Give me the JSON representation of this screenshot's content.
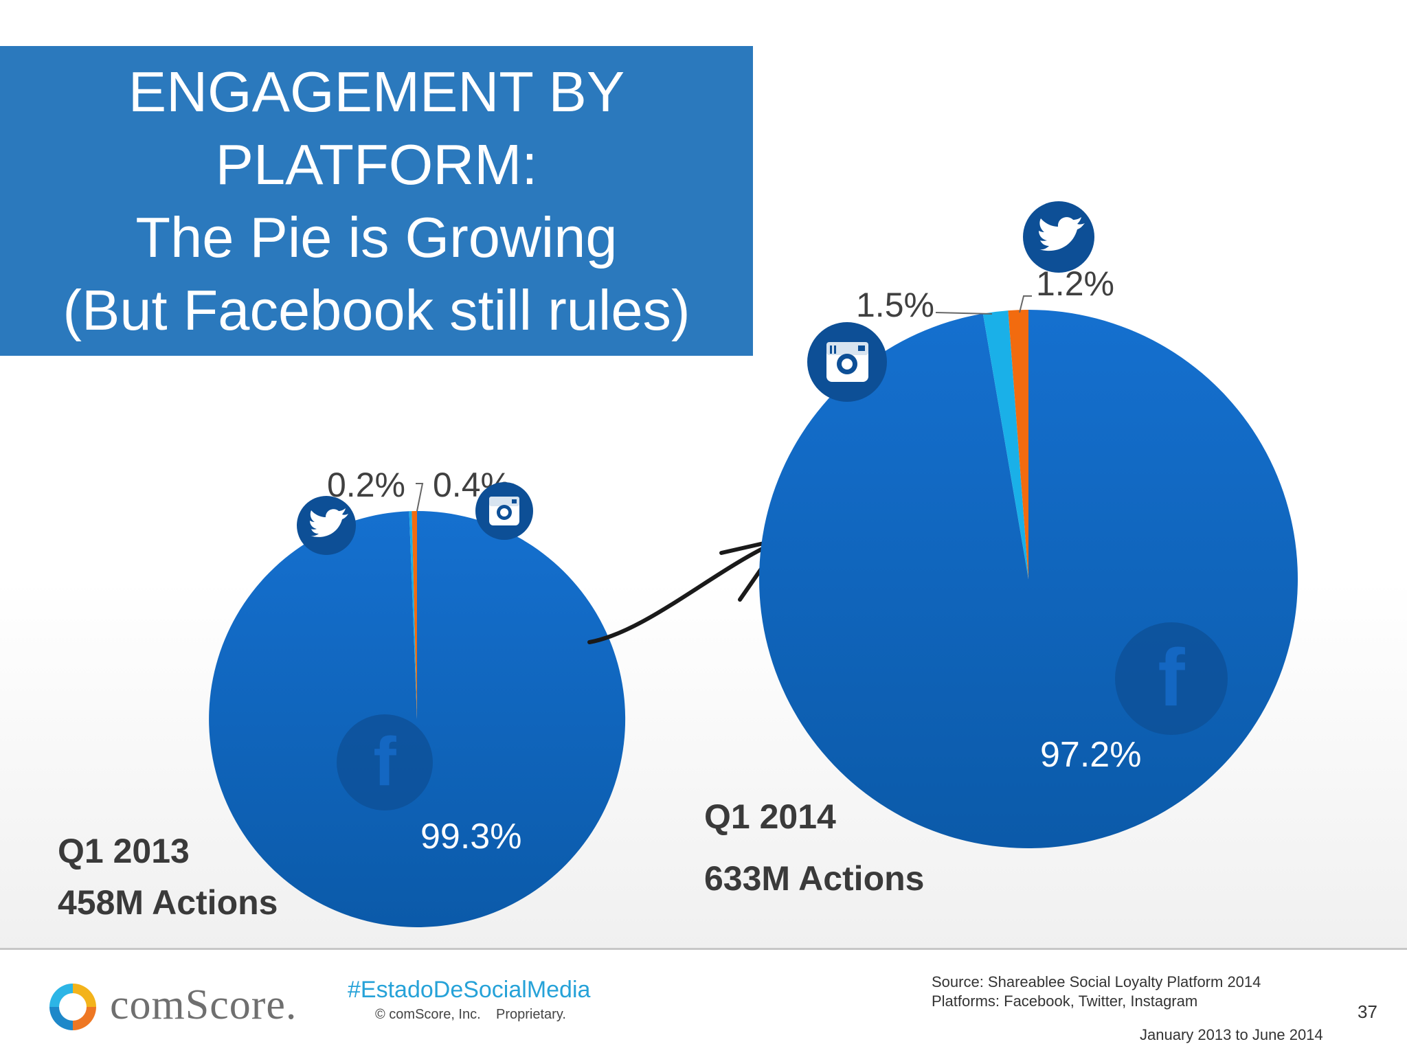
{
  "title": {
    "lines": [
      "ENGAGEMENT BY",
      "PLATFORM:",
      "The Pie is Growing",
      "(But Facebook still rules)"
    ]
  },
  "chart_data": [
    {
      "type": "pie",
      "period": "Q1 2013",
      "actions": "458M Actions",
      "slices": [
        {
          "name": "Facebook",
          "value": 99.3,
          "label": "99.3%",
          "color": "#1467c2",
          "icon": "facebook-icon"
        },
        {
          "name": "Twitter",
          "value": 0.2,
          "label": "0.2%",
          "color": "#1ab0e8",
          "icon": "twitter-icon"
        },
        {
          "name": "Instagram",
          "value": 0.4,
          "label": "0.4%",
          "color": "#f26b0f",
          "icon": "instagram-icon"
        }
      ]
    },
    {
      "type": "pie",
      "period": "Q1 2014",
      "actions": "633M Actions",
      "slices": [
        {
          "name": "Facebook",
          "value": 97.2,
          "label": "97.2%",
          "color": "#1467c2",
          "icon": "facebook-icon"
        },
        {
          "name": "Instagram",
          "value": 1.5,
          "label": "1.5%",
          "color": "#1ab0e8",
          "icon": "instagram-icon"
        },
        {
          "name": "Twitter",
          "value": 1.2,
          "label": "1.2%",
          "color": "#f26b0f",
          "icon": "twitter-icon"
        }
      ]
    }
  ],
  "footer": {
    "logo": "comScore.",
    "hashtag": "#EstadoDeSocialMedia",
    "copyright": "© comScore, Inc.",
    "proprietary": "Proprietary.",
    "source_line1": "Source: Shareablee Social Loyalty Platform 2014",
    "source_line2": "Platforms: Facebook, Twitter, Instagram",
    "page_number": "37",
    "date_range": "January 2013 to June 2014"
  },
  "colors": {
    "title_bg": "#2b79bd",
    "facebook": "#1467c2",
    "accent_blue": "#1ab0e8",
    "accent_orange": "#f26b0f",
    "icon_circle": "#0d4f96"
  }
}
